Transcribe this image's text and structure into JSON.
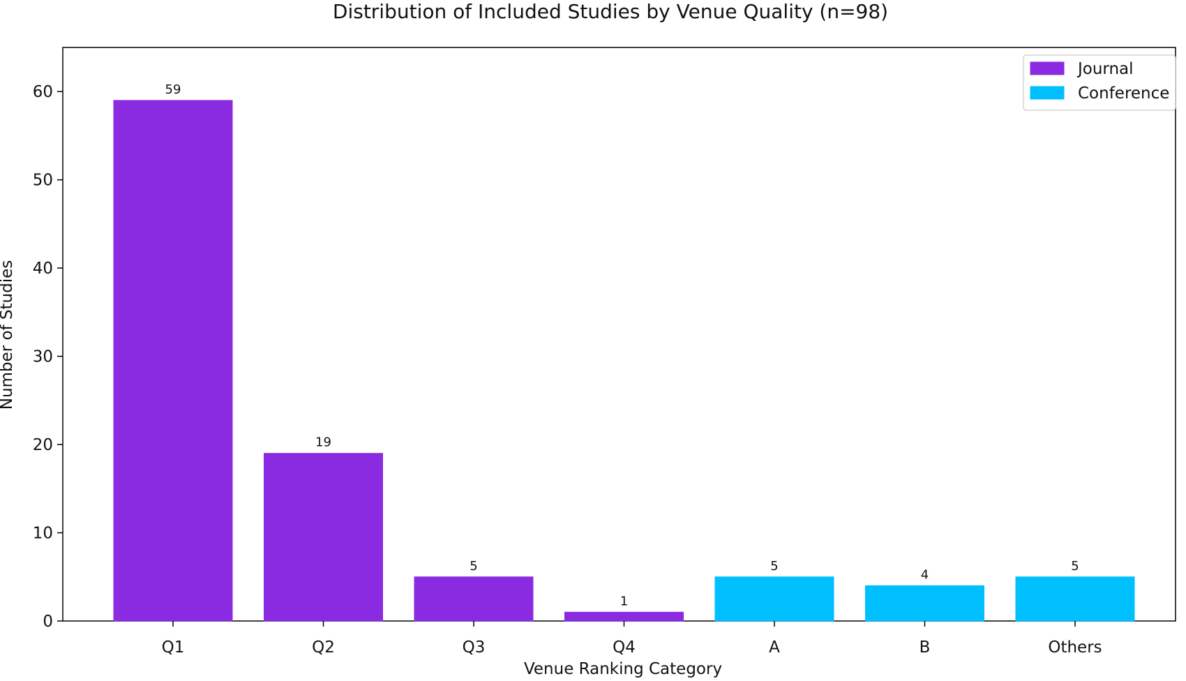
{
  "chart_data": {
    "type": "bar",
    "title": "Distribution of Included Studies by Venue Quality (n=98)",
    "xlabel": "Venue Ranking Category",
    "ylabel": "Number of Studies",
    "ylim": [
      0,
      65
    ],
    "yticks": [
      0,
      10,
      20,
      30,
      40,
      50,
      60
    ],
    "grid": false,
    "legend_position": "top-right",
    "categories": [
      "Q1",
      "Q2",
      "Q3",
      "Q4",
      "A",
      "B",
      "Others"
    ],
    "bars": [
      {
        "category": "Q1",
        "value": 59,
        "label": "59",
        "series": "Journal"
      },
      {
        "category": "Q2",
        "value": 19,
        "label": "19",
        "series": "Journal"
      },
      {
        "category": "Q3",
        "value": 5,
        "label": "5",
        "series": "Journal"
      },
      {
        "category": "Q4",
        "value": 1,
        "label": "1",
        "series": "Journal"
      },
      {
        "category": "A",
        "value": 5,
        "label": "5",
        "series": "Conference"
      },
      {
        "category": "B",
        "value": 4,
        "label": "4",
        "series": "Conference"
      },
      {
        "category": "Others",
        "value": 5,
        "label": "5",
        "series": "Conference"
      }
    ],
    "series": [
      {
        "name": "Journal",
        "color": "#8a2be2"
      },
      {
        "name": "Conference",
        "color": "#00bfff"
      }
    ]
  }
}
